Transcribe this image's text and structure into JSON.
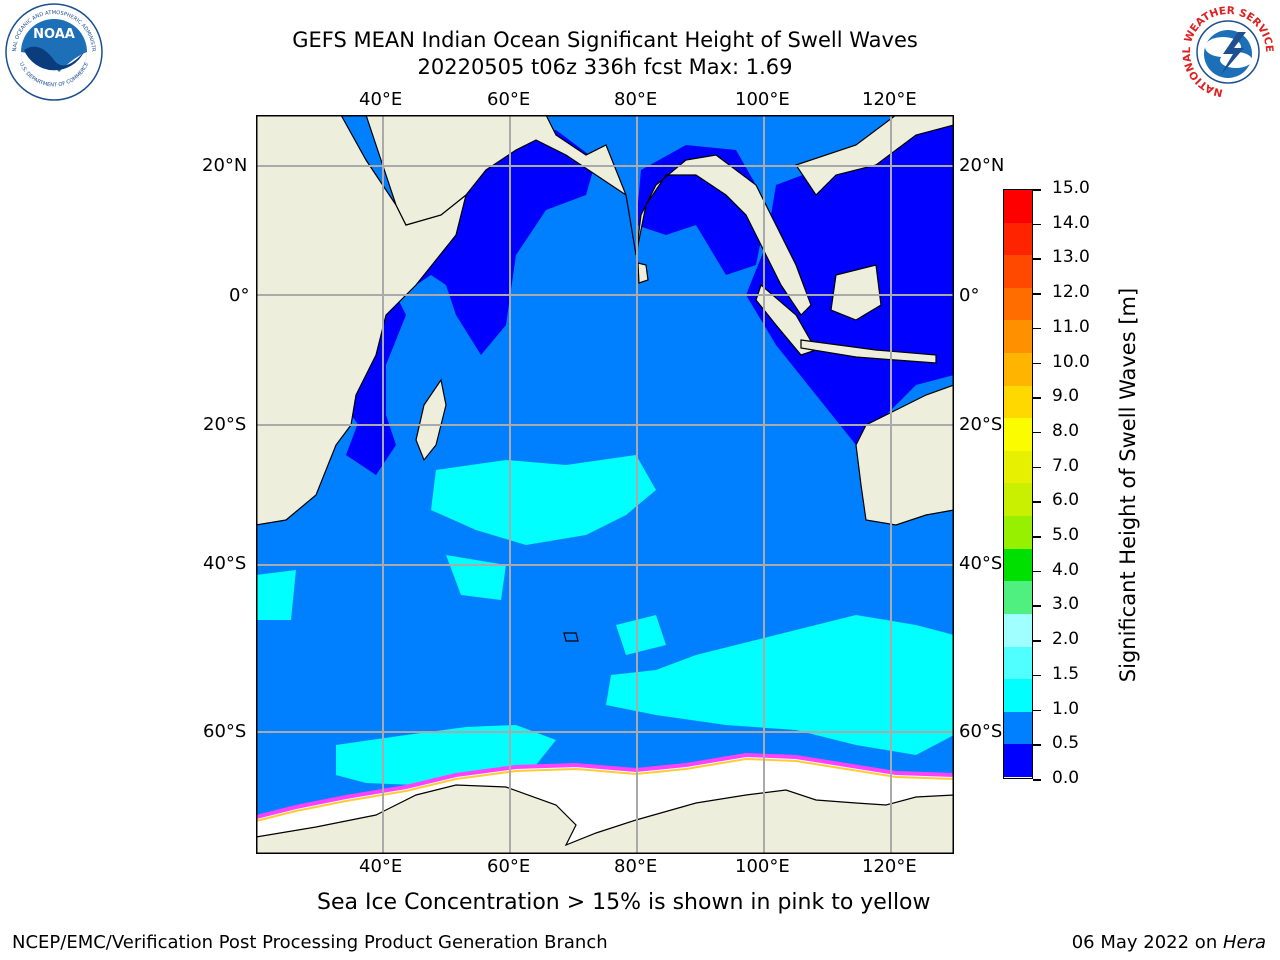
{
  "header": {
    "title_line1": "GEFS MEAN Indian Ocean Significant Height of Swell Waves",
    "title_line2": "20220505 t06z 336h fcst   Max: 1.69"
  },
  "map": {
    "lon_labels": [
      "40°E",
      "60°E",
      "80°E",
      "100°E",
      "120°E"
    ],
    "lat_labels": [
      "20°N",
      "0°",
      "20°S",
      "40°S",
      "60°S"
    ],
    "ocean_color_dominant": "#0080ff",
    "land_color": "#eeeedd"
  },
  "colorbar": {
    "label": "Significant Height of Swell Waves [m]",
    "ticks": [
      "15.0",
      "14.0",
      "13.0",
      "12.0",
      "11.0",
      "10.0",
      "9.0",
      "8.0",
      "7.0",
      "6.0",
      "5.0",
      "4.0",
      "3.0",
      "2.0",
      "1.5",
      "1.0",
      "0.5",
      "0.0"
    ],
    "colors": [
      "#ff0000",
      "#ff2400",
      "#ff4800",
      "#ff6c00",
      "#ff9000",
      "#ffb400",
      "#ffd800",
      "#fcfc00",
      "#e6f000",
      "#c8f000",
      "#96f000",
      "#00e000",
      "#50f080",
      "#a0ffff",
      "#50ffff",
      "#00ffff",
      "#0080ff",
      "#0000ff"
    ]
  },
  "caption": "Sea Ice Concentration > 15% is shown in pink to yellow",
  "footer": {
    "left": "NCEP/EMC/Verification Post Processing Product Generation Branch",
    "right_date": "06 May 2022 on ",
    "right_host": "Hera"
  },
  "logos": {
    "noaa_text": "NOAA",
    "noaa_ring": "NATIONAL OCEANIC AND ATMOSPHERIC ADMINISTRATION",
    "noaa_ring2": "U.S. DEPARTMENT OF COMMERCE",
    "nws_ring": "NATIONAL WEATHER SERVICE"
  }
}
